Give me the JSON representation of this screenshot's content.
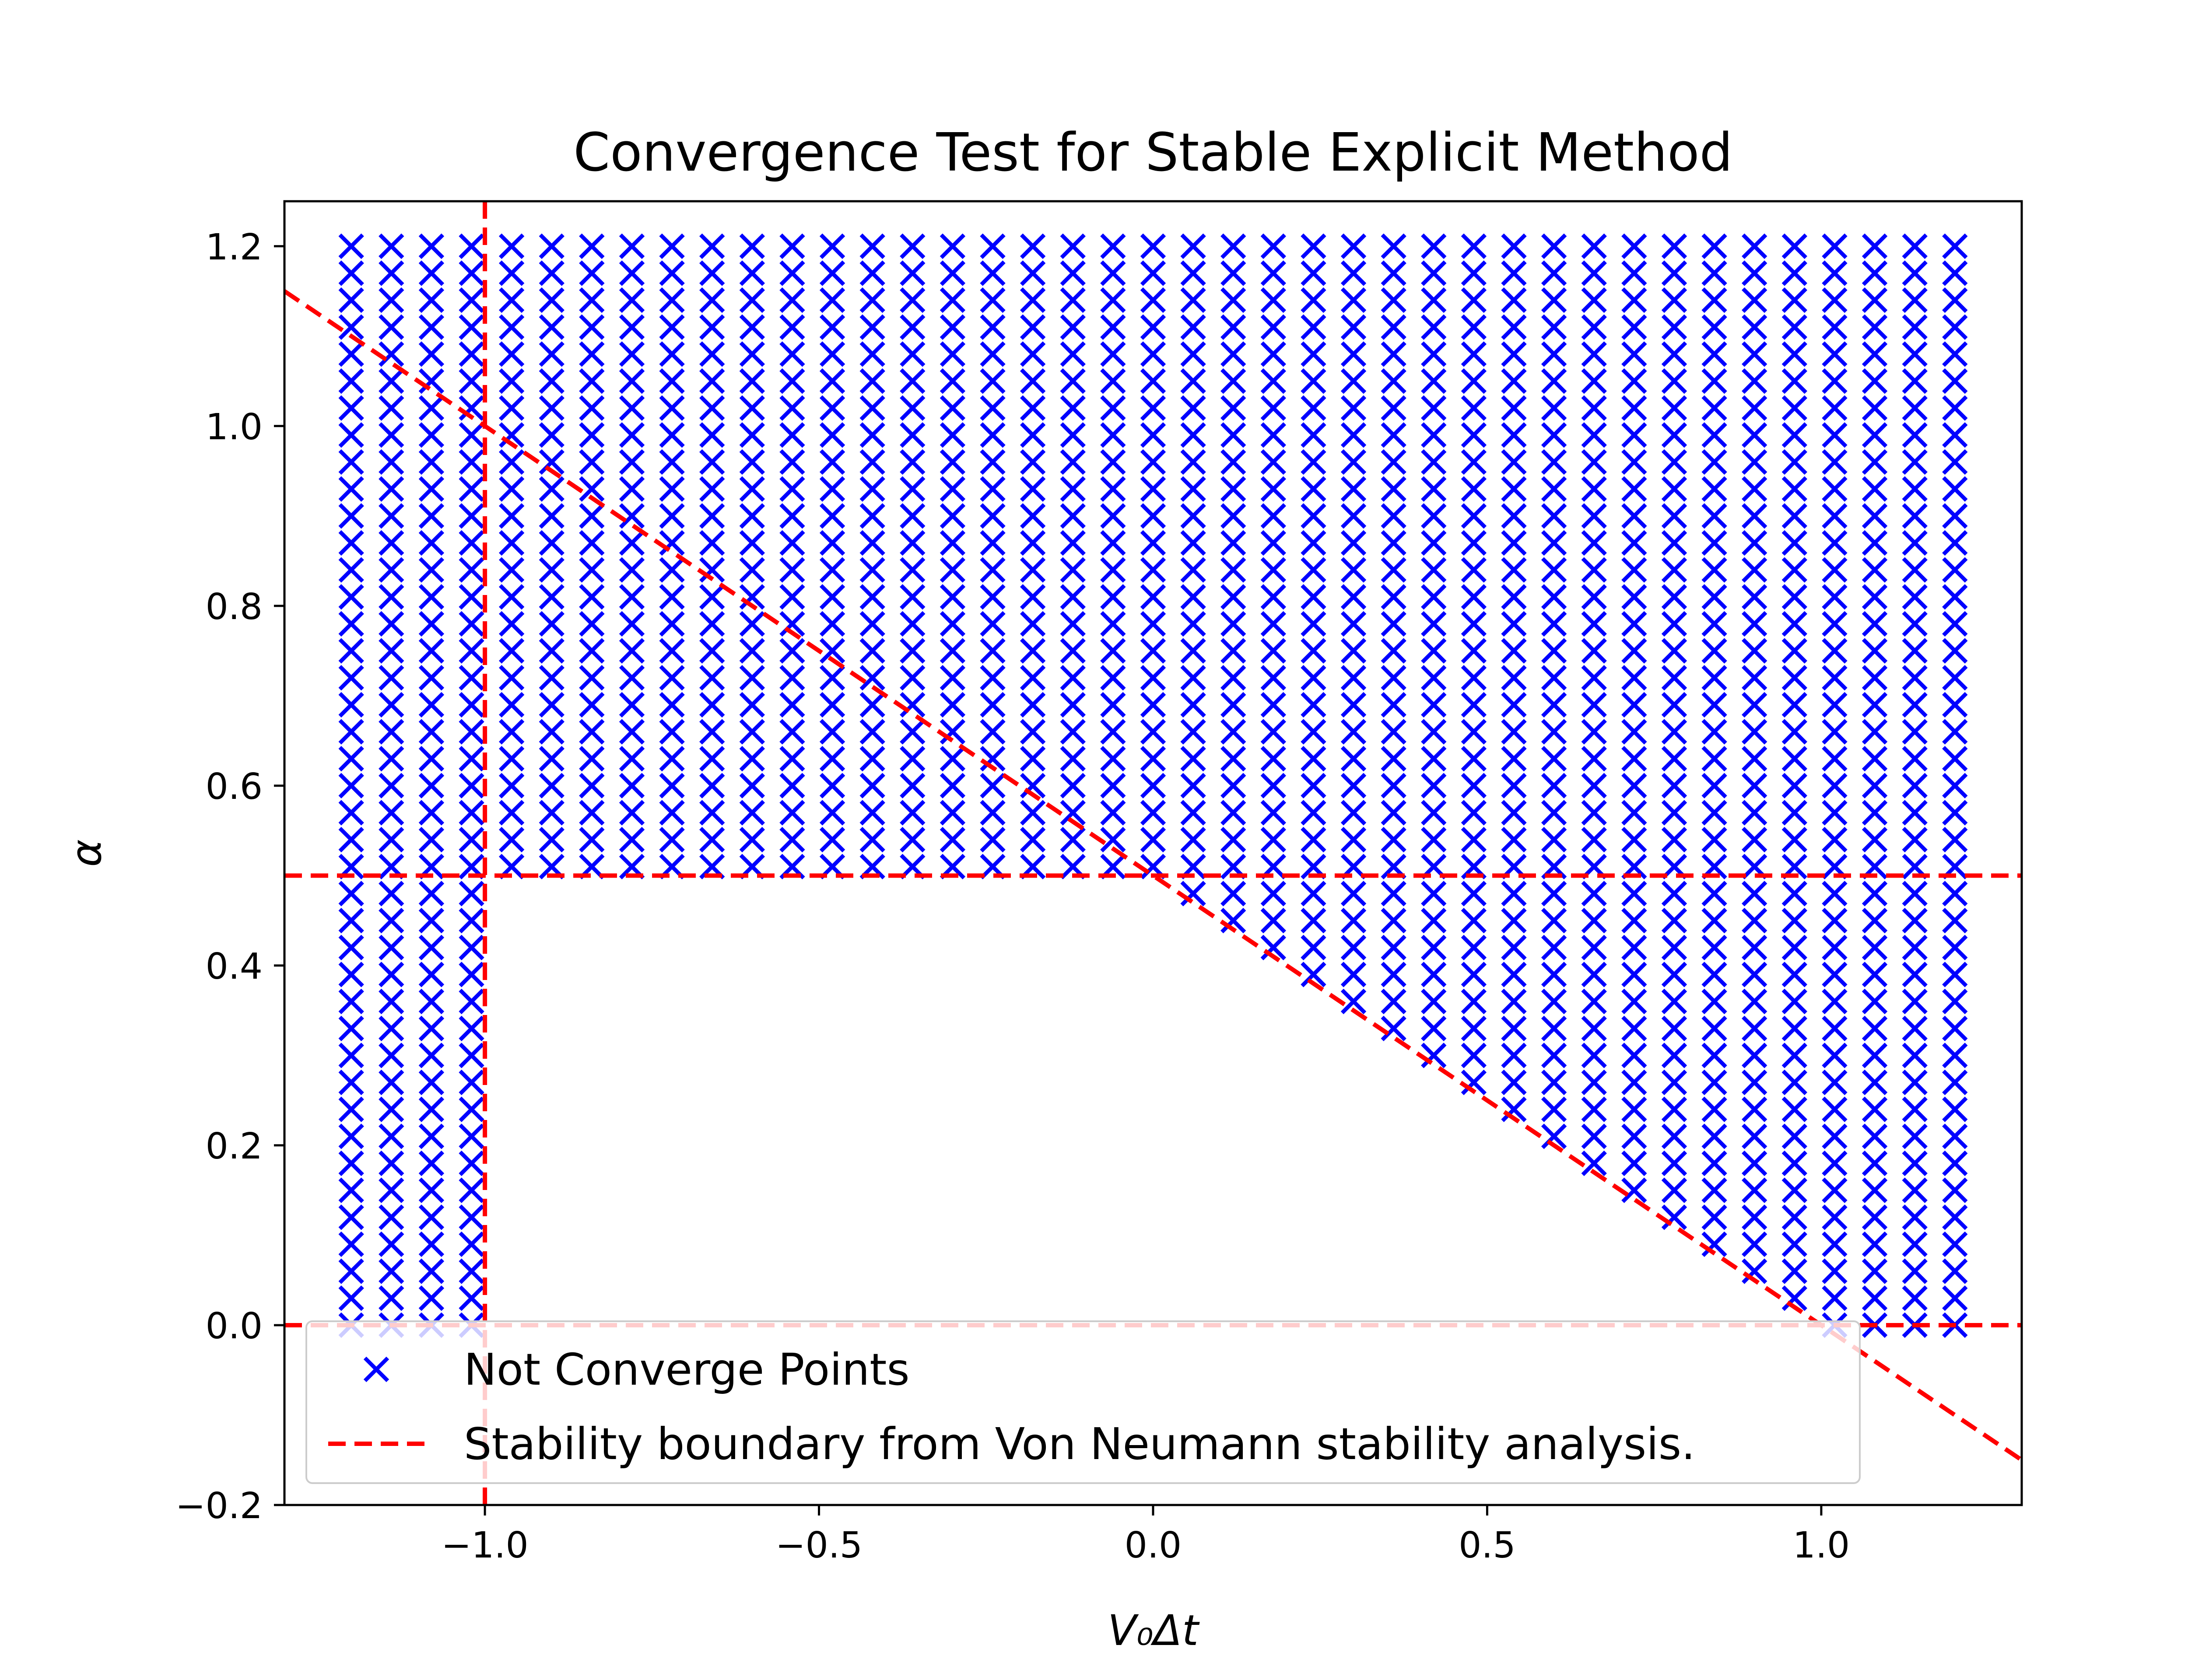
{
  "chart_data": {
    "type": "scatter",
    "title": "Convergence Test for Stable Explicit Method",
    "xlabel": "V₀Δt",
    "ylabel": "α",
    "xlim": [
      -1.3,
      1.3
    ],
    "ylim": [
      -0.2,
      1.25
    ],
    "grid": false,
    "legend_position": "lower-left",
    "x_ticks": [
      {
        "value": -1.0,
        "label": "−1.0"
      },
      {
        "value": -0.5,
        "label": "−0.5"
      },
      {
        "value": 0.0,
        "label": "0.0"
      },
      {
        "value": 0.5,
        "label": "0.5"
      },
      {
        "value": 1.0,
        "label": "1.0"
      }
    ],
    "y_ticks": [
      {
        "value": -0.2,
        "label": "−0.2"
      },
      {
        "value": 0.0,
        "label": "0.0"
      },
      {
        "value": 0.2,
        "label": "0.2"
      },
      {
        "value": 0.4,
        "label": "0.4"
      },
      {
        "value": 0.6,
        "label": "0.6"
      },
      {
        "value": 0.8,
        "label": "0.8"
      },
      {
        "value": 1.0,
        "label": "1.0"
      },
      {
        "value": 1.2,
        "label": "1.2"
      }
    ],
    "scatter_grid": {
      "x_start": -1.2,
      "x_end": 1.2,
      "x_count": 41,
      "y_start": 0.0,
      "y_end": 1.2,
      "y_count": 41
    },
    "series": [
      {
        "name": "Not Converge Points",
        "marker": "x",
        "color": "#0000ff",
        "region_rule": "points not satisfying: |V0Δt| <= 1 and V0Δt < 1 - 2α and α < 0.5 — i.e. outside the stable region bounded by α >= 0, α <= 0.5, V0Δt >= -1, and 2α + V0Δt <= 1"
      },
      {
        "name": "Stability boundary from Von Neumann stability analysis.",
        "line_style": "dashed",
        "color": "#ff0000",
        "lines": [
          {
            "kind": "vertical",
            "x": -1.0
          },
          {
            "kind": "horizontal",
            "y": 0.5
          },
          {
            "kind": "horizontal",
            "y": 0.0
          },
          {
            "kind": "line",
            "points": [
              [
                -1.3,
                1.15
              ],
              [
                1.3,
                -0.15
              ]
            ]
          }
        ]
      }
    ]
  }
}
